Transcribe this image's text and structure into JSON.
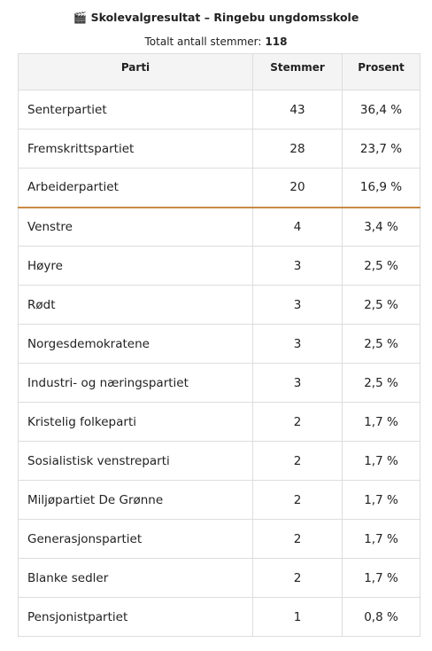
{
  "header": {
    "title": "🎬 Skolevalgresultat – Ringebu ungdomsskole",
    "total_label": "Totalt antall stemmer:",
    "total_value": 118
  },
  "table": {
    "columns": [
      "Parti",
      "Stemmer",
      "Prosent"
    ],
    "rows": [
      [
        "Senterpartiet",
        43,
        "36,4 %"
      ],
      [
        "Fremskrittspartiet",
        28,
        "23,7 %"
      ],
      [
        "Arbeiderpartiet",
        20,
        "16,9 %"
      ],
      [
        "Venstre",
        4,
        "3,4 %"
      ],
      [
        "Høyre",
        3,
        "2,5 %"
      ],
      [
        "Rødt",
        3,
        "2,5 %"
      ],
      [
        "Norgesdemokratene",
        3,
        "2,5 %"
      ],
      [
        "Industri- og næringspartiet",
        3,
        "2,5 %"
      ],
      [
        "Kristelig folkeparti",
        2,
        "1,7 %"
      ],
      [
        "Sosialistisk venstreparti",
        2,
        "1,7 %"
      ],
      [
        "Miljøpartiet De Grønne",
        2,
        "1,7 %"
      ],
      [
        "Generasjonspartiet",
        2,
        "1,7 %"
      ],
      [
        "Blanke sedler",
        2,
        "1,7 %"
      ],
      [
        "Pensjonistpartiet",
        1,
        "0,8 %"
      ]
    ]
  }
}
